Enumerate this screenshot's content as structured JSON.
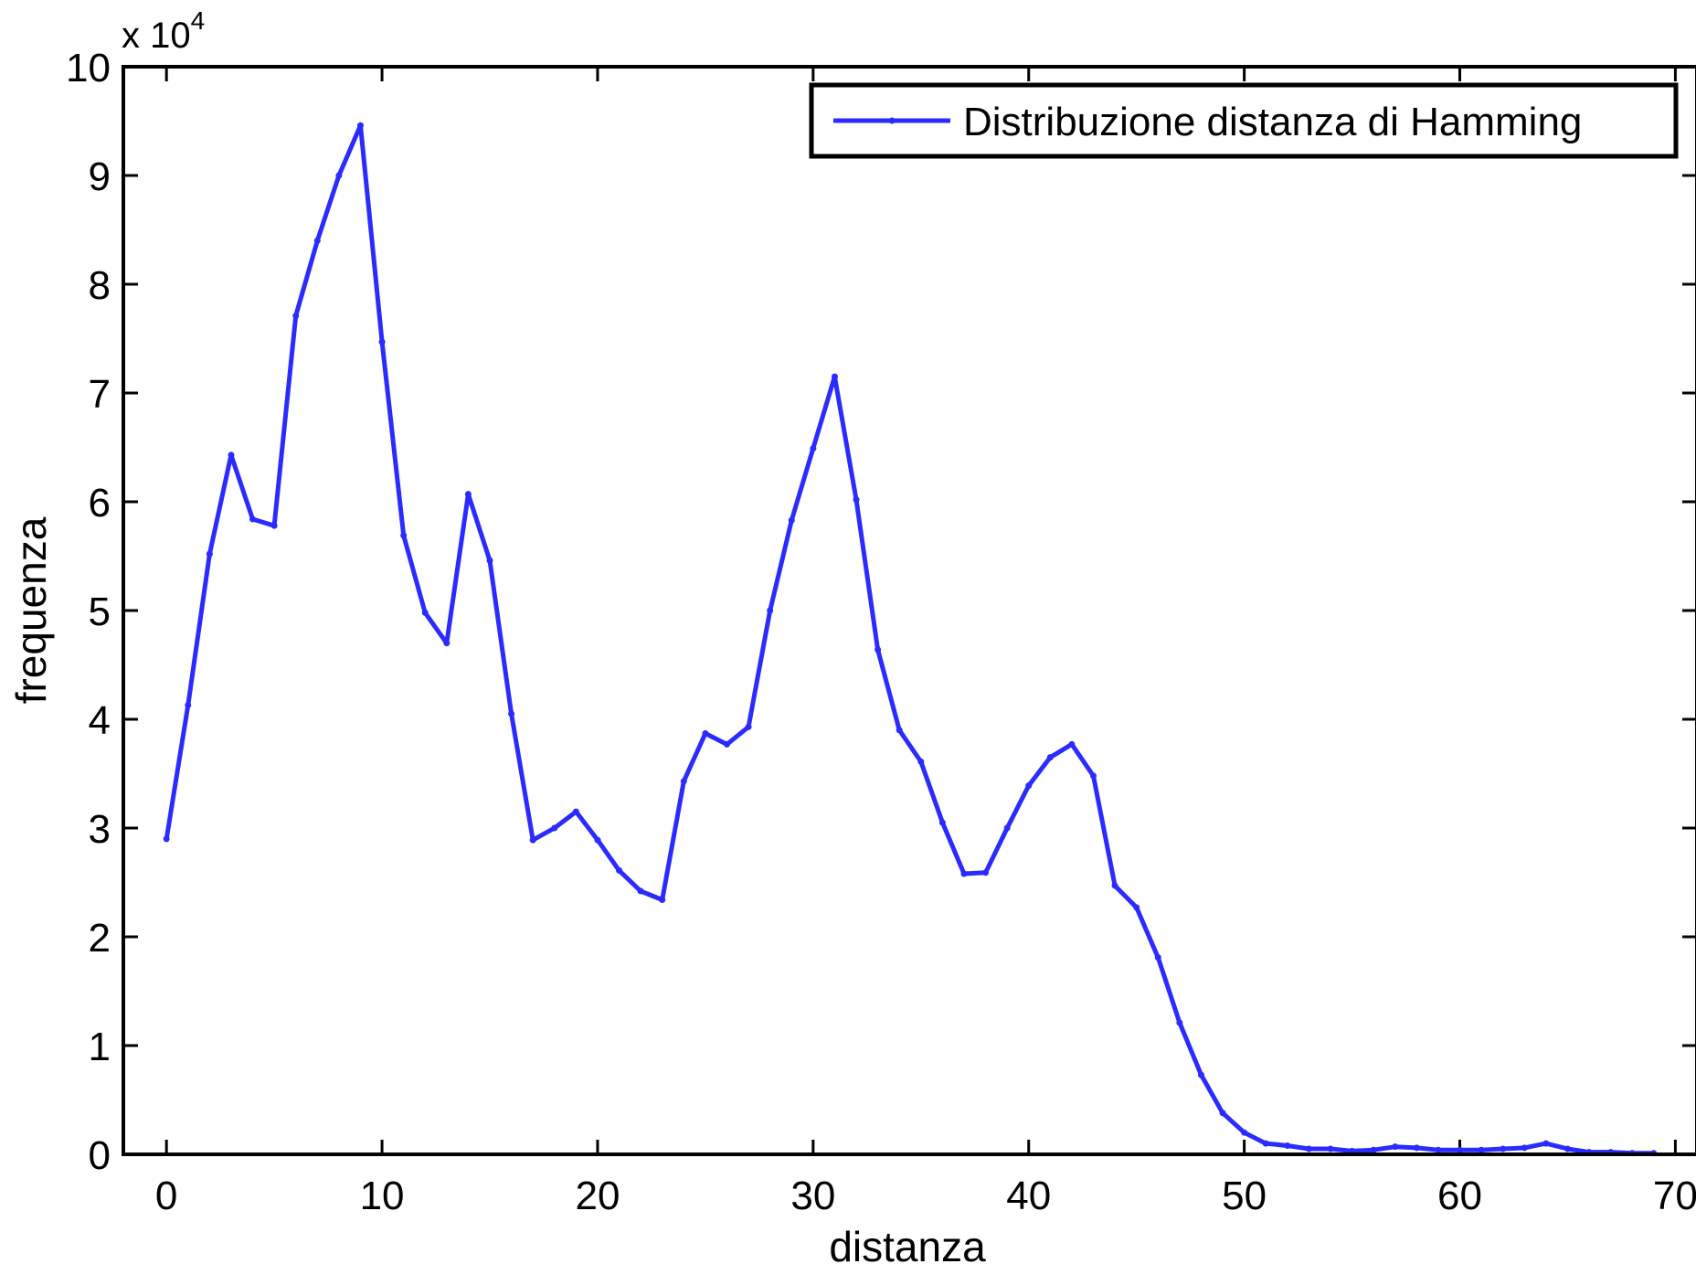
{
  "chart_data": {
    "type": "line",
    "xlabel": "distanza",
    "ylabel": "frequenza",
    "y_exponent_label": {
      "prefix": "x 10",
      "power": "4"
    },
    "xlim": [
      -2,
      71
    ],
    "ylim": [
      0,
      10
    ],
    "xticks": [
      0,
      10,
      20,
      30,
      40,
      50,
      60,
      70
    ],
    "yticks": [
      0,
      1,
      2,
      3,
      4,
      5,
      6,
      7,
      8,
      9,
      10
    ],
    "grid": false,
    "legend_position": "top-right",
    "line_color": "#2b2bff",
    "series": [
      {
        "name": "Distribuzione distanza di Hamming",
        "x": [
          0,
          1,
          2,
          3,
          4,
          5,
          6,
          7,
          8,
          9,
          10,
          11,
          12,
          13,
          14,
          15,
          16,
          17,
          18,
          19,
          20,
          21,
          22,
          23,
          24,
          25,
          26,
          27,
          28,
          29,
          30,
          31,
          32,
          33,
          34,
          35,
          36,
          37,
          38,
          39,
          40,
          41,
          42,
          43,
          44,
          45,
          46,
          47,
          48,
          49,
          50,
          51,
          52,
          53,
          54,
          55,
          56,
          57,
          58,
          59,
          60,
          61,
          62,
          63,
          64,
          65,
          66,
          67,
          68,
          69
        ],
        "values": [
          2.9,
          4.13,
          5.52,
          6.43,
          5.84,
          5.78,
          7.71,
          8.4,
          9.0,
          9.46,
          7.47,
          5.69,
          4.98,
          4.7,
          6.07,
          5.46,
          4.05,
          2.89,
          3.0,
          3.15,
          2.89,
          2.61,
          2.42,
          2.34,
          3.43,
          3.87,
          3.77,
          3.93,
          5.0,
          5.83,
          6.49,
          7.15,
          6.02,
          4.64,
          3.9,
          3.61,
          3.05,
          2.58,
          2.59,
          3.0,
          3.39,
          3.65,
          3.77,
          3.48,
          2.47,
          2.27,
          1.81,
          1.21,
          0.73,
          0.38,
          0.2,
          0.1,
          0.08,
          0.05,
          0.05,
          0.03,
          0.04,
          0.07,
          0.06,
          0.04,
          0.04,
          0.04,
          0.05,
          0.06,
          0.1,
          0.05,
          0.02,
          0.02,
          0.01,
          0.01
        ]
      }
    ]
  }
}
